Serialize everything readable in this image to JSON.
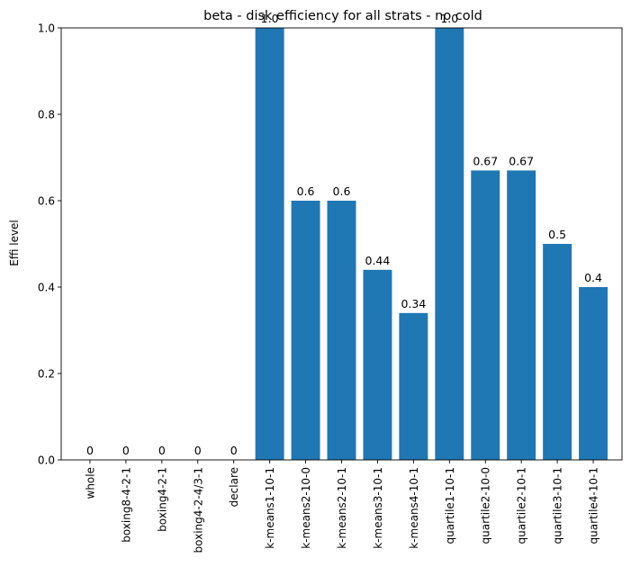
{
  "chart_data": {
    "type": "bar",
    "title": "beta - disk efficiency for all strats - no cold",
    "xlabel": "",
    "ylabel": "Effi level",
    "ylim": [
      0,
      1.0
    ],
    "yticks": [
      "0.0",
      "0.2",
      "0.4",
      "0.6",
      "0.8",
      "1.0"
    ],
    "categories": [
      "whole",
      "boxing8-4-2-1",
      "boxing4-2-1",
      "boxing4-2-4/3-1",
      "declare",
      "k-means1-10-1",
      "k-means2-10-0",
      "k-means2-10-1",
      "k-means3-10-1",
      "k-means4-10-1",
      "quartile1-10-1",
      "quartile2-10-0",
      "quartile2-10-1",
      "quartile3-10-1",
      "quartile4-10-1"
    ],
    "values": [
      0,
      0,
      0,
      0,
      0,
      1.0,
      0.6,
      0.6,
      0.44,
      0.34,
      1.0,
      0.67,
      0.67,
      0.5,
      0.4
    ],
    "data_labels": [
      "0",
      "0",
      "0",
      "0",
      "0",
      "1.0",
      "0.6",
      "0.6",
      "0.44",
      "0.34",
      "1.0",
      "0.67",
      "0.67",
      "0.5",
      "0.4"
    ],
    "bar_color": "#1f77b4",
    "grid": false,
    "legend": "none"
  }
}
